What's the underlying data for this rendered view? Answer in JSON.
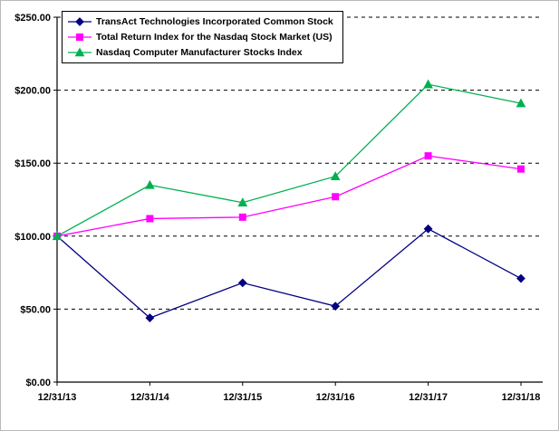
{
  "chart_data": {
    "type": "line",
    "title": "",
    "xlabel": "",
    "ylabel": "",
    "x": [
      "12/31/13",
      "12/31/14",
      "12/31/15",
      "12/31/16",
      "12/31/17",
      "12/31/18"
    ],
    "series": [
      {
        "name": "TransAct Technologies Incorporated Common Stock",
        "color": "#000080",
        "marker": "diamond",
        "values": [
          100,
          44,
          68,
          52,
          105,
          71
        ]
      },
      {
        "name": "Total Return Index for the Nasdaq Stock Market (US)",
        "color": "#FF00FF",
        "marker": "square",
        "values": [
          100,
          112,
          113,
          127,
          155,
          146
        ]
      },
      {
        "name": "Nasdaq Computer Manufacturer Stocks Index",
        "color": "#00B050",
        "marker": "triangle-up",
        "values": [
          100,
          135,
          123,
          141,
          204,
          191
        ]
      }
    ],
    "ylim": [
      0,
      250
    ],
    "ytick_step": 50,
    "ytick_labels": [
      "$0.00",
      "$50.00",
      "$100.00",
      "$150.00",
      "$200.00",
      "$250.00"
    ],
    "grid": "dashed-horizontal",
    "legend_position": "top-left",
    "axis_color": "#000000",
    "background_color": "#ffffff"
  }
}
